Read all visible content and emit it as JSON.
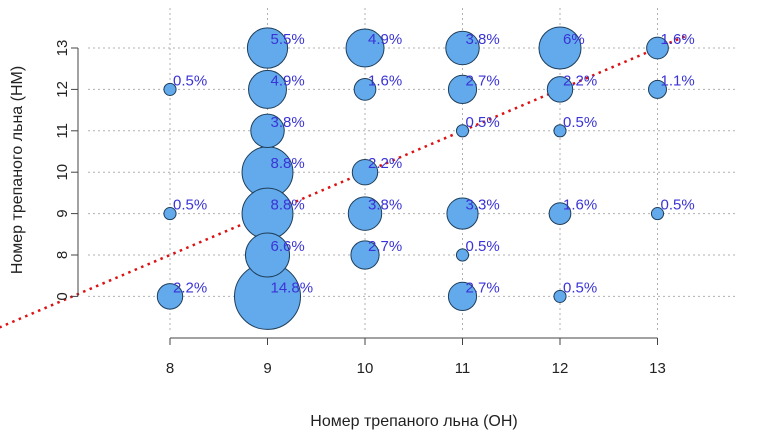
{
  "chart_data": {
    "type": "scatter",
    "title": "",
    "xlabel": "Номер трепаного льна (ОН)",
    "ylabel": "Номер трепаного льна (НМ)",
    "x_ticks": [
      "8",
      "9",
      "10",
      "11",
      "12",
      "13"
    ],
    "y_ticks": [
      "0",
      "8",
      "9",
      "10",
      "11",
      "12",
      "13"
    ],
    "grid": true,
    "colors": {
      "bubble_fill": "#63aaec",
      "bubble_stroke": "#1e3e5a",
      "label": "#3a33d6",
      "trend": "#dd1111",
      "grid": "#b0b0b0"
    },
    "points": [
      {
        "x": "8",
        "y": "12",
        "label": "0.5%",
        "value": 0.5
      },
      {
        "x": "8",
        "y": "9",
        "label": "0.5%",
        "value": 0.5
      },
      {
        "x": "8",
        "y": "0",
        "label": "2.2%",
        "value": 2.2
      },
      {
        "x": "9",
        "y": "13",
        "label": "5.5%",
        "value": 5.5
      },
      {
        "x": "9",
        "y": "12",
        "label": "4.9%",
        "value": 4.9
      },
      {
        "x": "9",
        "y": "11",
        "label": "3.8%",
        "value": 3.8
      },
      {
        "x": "9",
        "y": "10",
        "label": "8.8%",
        "value": 8.8
      },
      {
        "x": "9",
        "y": "9",
        "label": "8.8%",
        "value": 8.8
      },
      {
        "x": "9",
        "y": "8",
        "label": "6.6%",
        "value": 6.6
      },
      {
        "x": "9",
        "y": "0",
        "label": "14.8%",
        "value": 14.8
      },
      {
        "x": "10",
        "y": "13",
        "label": "4.9%",
        "value": 4.9
      },
      {
        "x": "10",
        "y": "12",
        "label": "1.6%",
        "value": 1.6
      },
      {
        "x": "10",
        "y": "10",
        "label": "2.2%",
        "value": 2.2
      },
      {
        "x": "10",
        "y": "9",
        "label": "3.8%",
        "value": 3.8
      },
      {
        "x": "10",
        "y": "8",
        "label": "2.7%",
        "value": 2.7
      },
      {
        "x": "11",
        "y": "13",
        "label": "3.8%",
        "value": 3.8
      },
      {
        "x": "11",
        "y": "12",
        "label": "2.7%",
        "value": 2.7
      },
      {
        "x": "11",
        "y": "11",
        "label": "0.5%",
        "value": 0.5
      },
      {
        "x": "11",
        "y": "9",
        "label": "3.3%",
        "value": 3.3
      },
      {
        "x": "11",
        "y": "8",
        "label": "0.5%",
        "value": 0.5
      },
      {
        "x": "11",
        "y": "0",
        "label": "2.7%",
        "value": 2.7
      },
      {
        "x": "12",
        "y": "13",
        "label": "6%",
        "value": 6
      },
      {
        "x": "12",
        "y": "12",
        "label": "2.2%",
        "value": 2.2
      },
      {
        "x": "12",
        "y": "11",
        "label": "0.5%",
        "value": 0.5
      },
      {
        "x": "12",
        "y": "9",
        "label": "1.6%",
        "value": 1.6
      },
      {
        "x": "12",
        "y": "0",
        "label": "0.5%",
        "value": 0.5
      },
      {
        "x": "13",
        "y": "13",
        "label": "1.6%",
        "value": 1.6
      },
      {
        "x": "13",
        "y": "12",
        "label": "1.1%",
        "value": 1.1
      },
      {
        "x": "13",
        "y": "9",
        "label": "0.5%",
        "value": 0.5
      }
    ],
    "trend_line": {
      "from": {
        "x": "8",
        "y": "8"
      },
      "to": {
        "x": "13",
        "y": "13"
      }
    }
  }
}
